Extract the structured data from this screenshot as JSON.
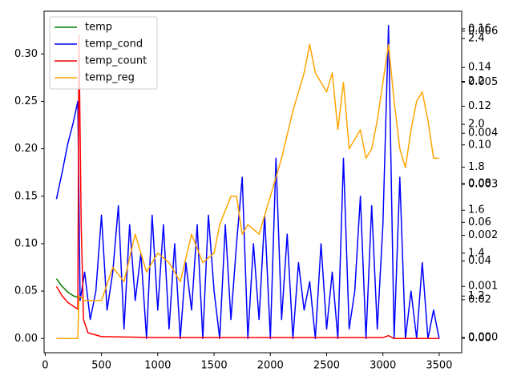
{
  "chart_data": {
    "type": "line",
    "xlim": [
      -10,
      3700
    ],
    "xticks": [
      0,
      500,
      1000,
      1500,
      2000,
      2500,
      3000,
      3500
    ],
    "ylim": [
      -0.015,
      0.345
    ],
    "yticks": [
      {
        "value": 0,
        "label": "0.00"
      },
      0.05,
      {
        "value": 0.1,
        "label": "0.10"
      },
      0.15,
      {
        "value": 0.2,
        "label": "0.20"
      },
      0.25,
      {
        "value": 0.3,
        "label": "0.30"
      }
    ],
    "right_axes": [
      {
        "ylim": [
          -0.0074,
          0.1691
        ],
        "yticks": [
          {
            "value": 0,
            "label": "0.00"
          },
          0.02,
          0.04,
          0.06,
          0.08,
          {
            "value": 0.1,
            "label": "0.10"
          },
          0.12,
          0.14,
          0.16
        ]
      },
      {
        "ylim": [
          0.936,
          2.527
        ],
        "yticks": [
          1.2,
          1.4,
          1.6,
          1.8,
          {
            "value": 2,
            "label": "2.0"
          },
          2.2,
          2.4
        ]
      },
      {
        "ylim": [
          -0.0003,
          0.00639
        ],
        "yticks": [
          {
            "value": 0,
            "label": "0.000"
          },
          0.001,
          0.002,
          0.003,
          0.004,
          0.005,
          0.006
        ]
      }
    ],
    "legend": "upper left",
    "series": [
      {
        "name": "temp",
        "color": "#008000",
        "x": [
          100,
          150,
          200,
          250,
          300
        ],
        "values": [
          0.063,
          0.055,
          0.049,
          0.045,
          0.043
        ]
      },
      {
        "name": "temp_cond",
        "color": "#0000ff",
        "x": [
          100,
          150,
          200,
          250,
          290,
          310,
          350,
          400,
          450,
          500,
          550,
          600,
          650,
          700,
          750,
          800,
          850,
          900,
          950,
          1000,
          1050,
          1100,
          1150,
          1200,
          1250,
          1300,
          1350,
          1400,
          1450,
          1500,
          1550,
          1600,
          1650,
          1700,
          1750,
          1800,
          1850,
          1900,
          1950,
          2000,
          2050,
          2100,
          2150,
          2200,
          2250,
          2300,
          2350,
          2400,
          2450,
          2500,
          2550,
          2600,
          2650,
          2700,
          2750,
          2800,
          2850,
          2900,
          2950,
          3000,
          3050,
          3100,
          3150,
          3200,
          3250,
          3300,
          3350,
          3400,
          3450,
          3500
        ],
        "values": [
          0.147,
          0.175,
          0.205,
          0.228,
          0.25,
          0.04,
          0.07,
          0.02,
          0.05,
          0.13,
          0.03,
          0.07,
          0.14,
          0.01,
          0.12,
          0.04,
          0.09,
          0.0,
          0.13,
          0.03,
          0.12,
          0.01,
          0.1,
          0.0,
          0.08,
          0.03,
          0.12,
          0.0,
          0.13,
          0.05,
          0.0,
          0.12,
          0.02,
          0.1,
          0.17,
          0.0,
          0.1,
          0.02,
          0.13,
          0.0,
          0.19,
          0.02,
          0.11,
          0.0,
          0.08,
          0.03,
          0.06,
          0.0,
          0.1,
          0.01,
          0.07,
          0.0,
          0.19,
          0.01,
          0.05,
          0.15,
          0.0,
          0.14,
          0.01,
          0.12,
          0.33,
          0.0,
          0.17,
          0.0,
          0.05,
          0.0,
          0.08,
          0.0,
          0.03,
          0.0
        ]
      },
      {
        "name": "temp_count",
        "color": "#ff0000",
        "x": [
          100,
          150,
          200,
          250,
          290,
          300,
          320,
          340,
          380,
          500,
          1000,
          2000,
          3000,
          3050,
          3100,
          3500
        ],
        "values": [
          0.055,
          0.045,
          0.038,
          0.034,
          0.031,
          0.32,
          0.12,
          0.02,
          0.006,
          0.002,
          0.001,
          0.001,
          0.001,
          0.003,
          0.0,
          0.0
        ]
      },
      {
        "name": "temp_reg",
        "color": "#ffa500",
        "x": [
          100,
          290,
          300,
          350,
          400,
          500,
          600,
          700,
          800,
          900,
          1000,
          1100,
          1200,
          1300,
          1400,
          1500,
          1550,
          1650,
          1700,
          1750,
          1800,
          1900,
          2000,
          2100,
          2200,
          2300,
          2350,
          2400,
          2500,
          2550,
          2600,
          2650,
          2700,
          2800,
          2850,
          2900,
          2950,
          3000,
          3050,
          3100,
          3150,
          3200,
          3250,
          3300,
          3350,
          3400,
          3450,
          3500
        ],
        "values": [
          0.0,
          0.0,
          0.045,
          0.04,
          0.04,
          0.04,
          0.075,
          0.06,
          0.11,
          0.07,
          0.09,
          0.08,
          0.06,
          0.11,
          0.08,
          0.09,
          0.12,
          0.15,
          0.15,
          0.11,
          0.12,
          0.11,
          0.15,
          0.19,
          0.24,
          0.28,
          0.31,
          0.28,
          0.26,
          0.28,
          0.22,
          0.27,
          0.2,
          0.22,
          0.19,
          0.2,
          0.23,
          0.27,
          0.31,
          0.25,
          0.2,
          0.18,
          0.22,
          0.25,
          0.26,
          0.23,
          0.19,
          0.19
        ]
      }
    ]
  }
}
